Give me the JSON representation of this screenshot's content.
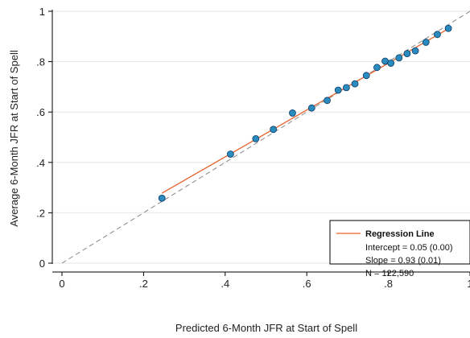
{
  "chart_data": {
    "type": "scatter",
    "title": "",
    "xlabel": "Predicted 6-Month JFR at Start of Spell",
    "ylabel": "Average 6-Month JFR at Start of Spell",
    "xlim": [
      0,
      1
    ],
    "ylim": [
      0,
      1
    ],
    "x_ticks": [
      0,
      0.2,
      0.4,
      0.6,
      0.8,
      1
    ],
    "x_tick_labels": [
      "0",
      ".2",
      ".4",
      ".6",
      ".8",
      "1"
    ],
    "y_ticks": [
      0,
      0.2,
      0.4,
      0.6,
      0.8,
      1
    ],
    "y_tick_labels": [
      "0",
      ".2",
      ".4",
      ".6",
      ".8",
      "1"
    ],
    "grid": "horizontal",
    "points": [
      {
        "x": 0.245,
        "y": 0.258
      },
      {
        "x": 0.413,
        "y": 0.433
      },
      {
        "x": 0.475,
        "y": 0.494
      },
      {
        "x": 0.518,
        "y": 0.531
      },
      {
        "x": 0.565,
        "y": 0.596
      },
      {
        "x": 0.612,
        "y": 0.616
      },
      {
        "x": 0.65,
        "y": 0.646
      },
      {
        "x": 0.677,
        "y": 0.687
      },
      {
        "x": 0.697,
        "y": 0.697
      },
      {
        "x": 0.718,
        "y": 0.712
      },
      {
        "x": 0.746,
        "y": 0.745
      },
      {
        "x": 0.772,
        "y": 0.777
      },
      {
        "x": 0.792,
        "y": 0.802
      },
      {
        "x": 0.806,
        "y": 0.794
      },
      {
        "x": 0.826,
        "y": 0.815
      },
      {
        "x": 0.846,
        "y": 0.832
      },
      {
        "x": 0.866,
        "y": 0.843
      },
      {
        "x": 0.892,
        "y": 0.877
      },
      {
        "x": 0.92,
        "y": 0.908
      },
      {
        "x": 0.947,
        "y": 0.932
      }
    ],
    "regression_line": {
      "intercept": 0.05,
      "slope": 0.93,
      "x_range": [
        0.245,
        0.947
      ],
      "color": "#e8622a"
    },
    "reference_line": {
      "type": "45-degree",
      "style": "dashed",
      "color": "#888888"
    },
    "marker_color": "#1f77b4",
    "marker_fill": "#2a8bbf",
    "legend": {
      "placement": "bottom-right",
      "title": "Regression Line",
      "lines": [
        "Intercept = 0.05 (0.00)",
        "Slope = 0.93 (0.01)",
        "N =   122,590"
      ]
    }
  }
}
